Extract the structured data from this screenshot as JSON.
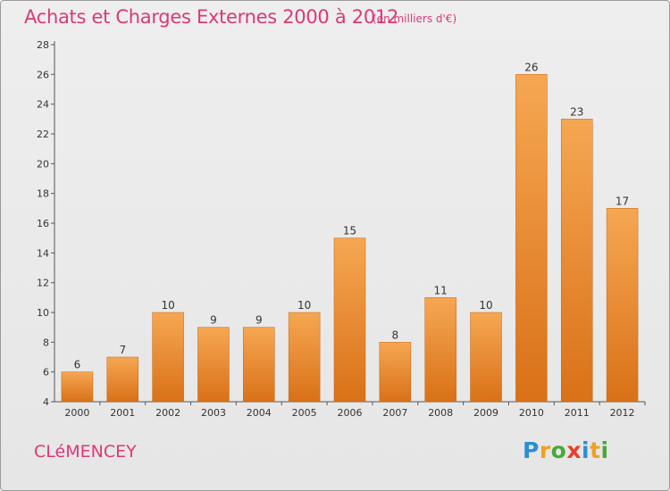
{
  "header": {
    "title": "Achats et Charges Externes 2000 à 2012",
    "subtitle": "(en milliers d'€)"
  },
  "footer": {
    "place_name": "CLéMENCEY",
    "logo_text": "Proxiti",
    "logo_letters": [
      {
        "ch": "P",
        "color": "#2a8fd6"
      },
      {
        "ch": "r",
        "color": "#f0a020"
      },
      {
        "ch": "o",
        "color": "#49a83a"
      },
      {
        "ch": "x",
        "color": "#e8402a"
      },
      {
        "ch": "i",
        "color": "#2a8fd6"
      },
      {
        "ch": "t",
        "color": "#f0a020"
      },
      {
        "ch": "i",
        "color": "#49a83a"
      }
    ]
  },
  "colors": {
    "accent": "#d93a78",
    "bar_light": "#f6a752",
    "bar_dark": "#d97118"
  },
  "chart_data": {
    "type": "bar",
    "title": "Achats et Charges Externes 2000 à 2012",
    "subtitle": "(en milliers d'€)",
    "xlabel": "",
    "ylabel": "",
    "categories": [
      "2000",
      "2001",
      "2002",
      "2003",
      "2004",
      "2005",
      "2006",
      "2007",
      "2008",
      "2009",
      "2010",
      "2011",
      "2012"
    ],
    "values": [
      6,
      7,
      10,
      9,
      9,
      10,
      15,
      8,
      11,
      10,
      26,
      23,
      17
    ],
    "ylim": [
      4,
      28
    ],
    "yticks": [
      4,
      6,
      8,
      10,
      12,
      14,
      16,
      18,
      20,
      22,
      24,
      26,
      28
    ],
    "grid": false,
    "legend": "none"
  }
}
